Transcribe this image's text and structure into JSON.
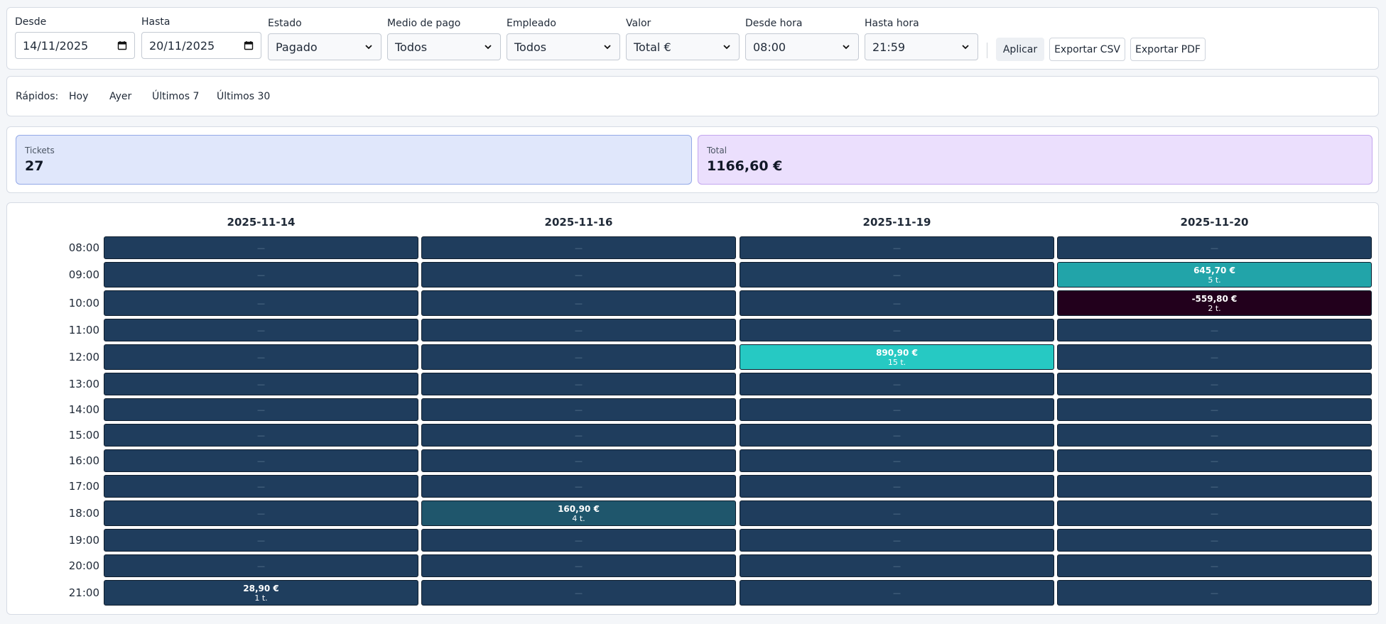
{
  "filters": [
    {
      "label": "Desde",
      "value": "14/11/2025"
    },
    {
      "label": "Hasta",
      "value": "20/11/2025"
    },
    {
      "label": "Estado",
      "value": "Pagado"
    },
    {
      "label": "Medio de pago",
      "value": "Todos"
    },
    {
      "label": "Empleado",
      "value": "Todos"
    },
    {
      "label": "Valor",
      "value": "Total €"
    },
    {
      "label": "Desde hora",
      "value": "08:00"
    },
    {
      "label": "Hasta hora",
      "value": "21:59"
    }
  ],
  "actions": [
    "Aplicar",
    "Exportar CSV",
    "Exportar PDF"
  ],
  "quick": {
    "label": "Rápidos:",
    "options": [
      "Hoy",
      "Ayer",
      "Últimos 7",
      "Últimos 30"
    ]
  },
  "summary": [
    {
      "label": "Tickets",
      "value": "27"
    },
    {
      "label": "Total",
      "value": "1166,60 €"
    }
  ],
  "heatmap": {
    "columns": [
      "2025-11-14",
      "2025-11-16",
      "2025-11-19",
      "2025-11-20"
    ],
    "rows": [
      "08:00",
      "09:00",
      "10:00",
      "11:00",
      "12:00",
      "13:00",
      "14:00",
      "15:00",
      "16:00",
      "17:00",
      "18:00",
      "19:00",
      "20:00",
      "21:00"
    ],
    "empty": "—",
    "cells": [
      [
        null,
        null,
        null,
        null
      ],
      [
        null,
        null,
        null,
        {
          "amount": "645,70 €",
          "tickets": "5 t.",
          "color": "#22a4a9"
        }
      ],
      [
        null,
        null,
        null,
        {
          "amount": "-559,80 €",
          "tickets": "2 t.",
          "color": "#22001c"
        }
      ],
      [
        null,
        null,
        null,
        null
      ],
      [
        null,
        null,
        {
          "amount": "890,90 €",
          "tickets": "15 t.",
          "color": "#26c9c3"
        },
        null
      ],
      [
        null,
        null,
        null,
        null
      ],
      [
        null,
        null,
        null,
        null
      ],
      [
        null,
        null,
        null,
        null
      ],
      [
        null,
        null,
        null,
        null
      ],
      [
        null,
        null,
        null,
        null
      ],
      [
        null,
        {
          "amount": "160,90 €",
          "tickets": "4 t.",
          "color": "#1f566c"
        },
        null,
        null
      ],
      [
        null,
        null,
        null,
        null
      ],
      [
        null,
        null,
        null,
        null
      ],
      [
        {
          "amount": "28,90 €",
          "tickets": "1 t.",
          "color": "#1f3e5e"
        },
        null,
        null,
        null
      ]
    ]
  }
}
